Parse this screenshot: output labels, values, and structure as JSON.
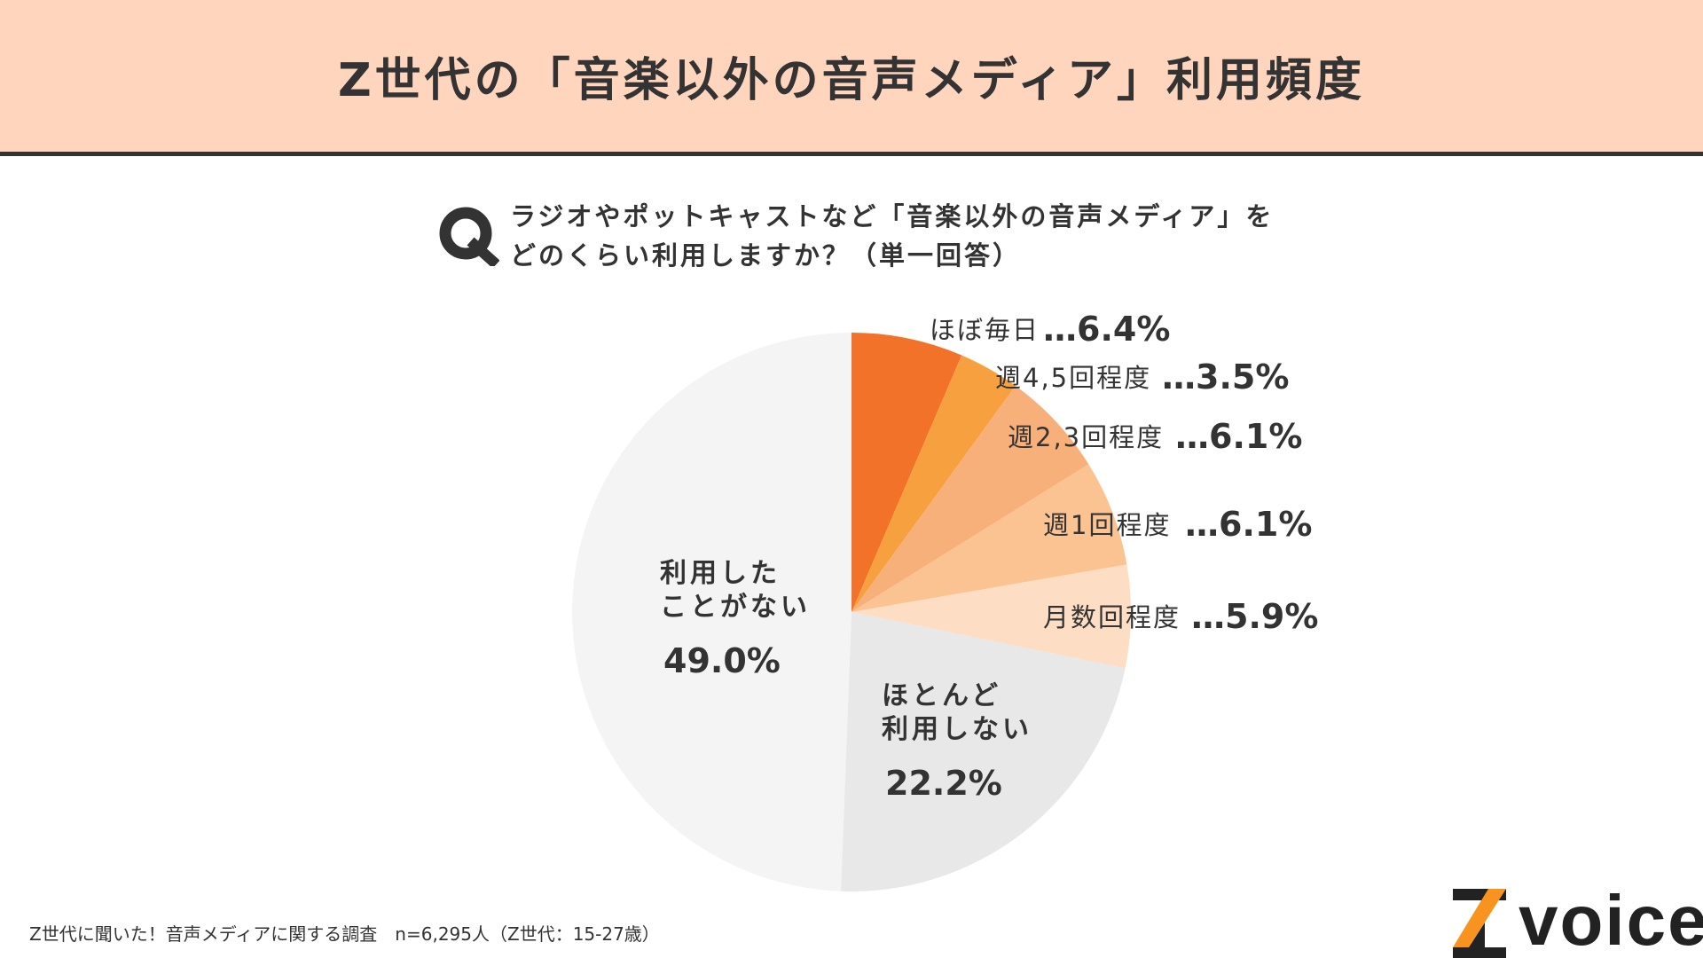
{
  "header": {
    "title": "Z世代の「音楽以外の音声メディア」利用頻度"
  },
  "question": {
    "line1": "ラジオやポットキャストなど「音楽以外の音声メディア」を",
    "line2": "どのくらい利用しますか？（単一回答）"
  },
  "chart_data": {
    "type": "pie",
    "start_angle_deg": 0,
    "direction": "clockwise",
    "slices": [
      {
        "label": "ほぼ毎日",
        "value": 6.4,
        "value_label": "…6.4%",
        "color": "#f27229"
      },
      {
        "label": "週4,5回程度",
        "value": 3.5,
        "value_label": "…3.5%",
        "color": "#f7a03f"
      },
      {
        "label": "週2,3回程度",
        "value": 6.1,
        "value_label": "…6.1%",
        "color": "#f8b07a"
      },
      {
        "label": "週1回程度",
        "value": 6.1,
        "value_label": "…6.1%",
        "color": "#fbc391"
      },
      {
        "label": "月数回程度",
        "value": 5.9,
        "value_label": "…5.9%",
        "color": "#fdddc4"
      },
      {
        "label_lines": [
          "ほとんど",
          "利用しない"
        ],
        "value": 22.2,
        "value_label": "22.2%",
        "color": "#e8e8e9"
      },
      {
        "label_lines": [
          "利用した",
          "ことがない"
        ],
        "value": 49.0,
        "value_label": "49.0%",
        "color": "#f4f4f4"
      }
    ]
  },
  "footnote": "Z世代に聞いた！音声メディアに関する調査　n=6,295人（Z世代：15-27歳）",
  "logo": {
    "text": "voice",
    "accent": "#f7931e"
  }
}
